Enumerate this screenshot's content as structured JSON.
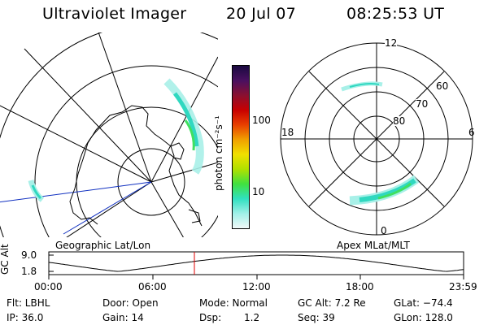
{
  "header": {
    "instrument": "Ultraviolet Imager",
    "date": "20 Jul 07",
    "time": "08:25:53 UT"
  },
  "colorbar": {
    "unit_label": "photon cm⁻²s⁻¹",
    "ticks": [
      "100",
      "10"
    ],
    "colors": [
      "#1a0a40",
      "#4a1060",
      "#8a1030",
      "#c80000",
      "#e84000",
      "#f0a000",
      "#f0e000",
      "#b0e000",
      "#40e040",
      "#30e0c0",
      "#a0f0e8",
      "#f0f8f8"
    ]
  },
  "left_map": {
    "caption": "Geographic Lat/Lon"
  },
  "right_map": {
    "caption": "Apex MLat/MLT",
    "lat_labels": [
      "60",
      "70",
      "80"
    ],
    "mlt_labels": {
      "top": "12",
      "left": "18",
      "right": "6",
      "bottom": "0"
    }
  },
  "timeline": {
    "axis_label": "GC Alt",
    "y_ticks": [
      "9.0",
      "1.8"
    ],
    "x_ticks": [
      "00:00",
      "06:00",
      "12:00",
      "18:00",
      "23:59"
    ],
    "marker_color": "#e00000"
  },
  "info": {
    "filter": "Flt: LBHL",
    "door": "Door: Open",
    "mode": "Mode: Normal",
    "gc_alt": "GC Alt: 7.2 Re",
    "glat": "GLat: −74.4",
    "ip": "IP: 36.0",
    "gain": "Gain: 14",
    "dsp_label": "Dsp:",
    "dsp_value": "1.2",
    "seq": "Seq: 39",
    "glon": "GLon: 128.0"
  }
}
